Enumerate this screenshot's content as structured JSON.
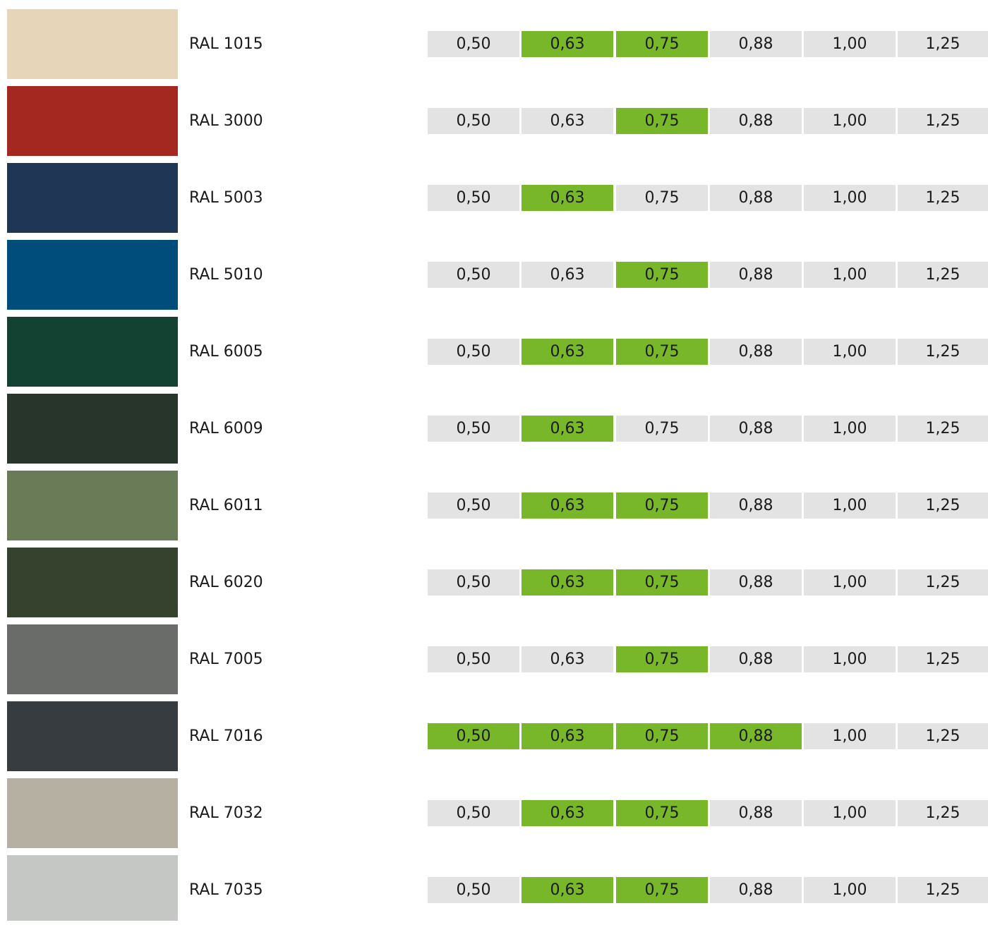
{
  "colors": {
    "available": "#78b72a",
    "unavailable": "#e3e3e3",
    "text": "#1a1a1a"
  },
  "rows": [
    {
      "label": "RAL 1015",
      "swatch": "#e6d5b8",
      "cells": [
        {
          "value": "0,50",
          "available": false
        },
        {
          "value": "0,63",
          "available": true
        },
        {
          "value": "0,75",
          "available": true
        },
        {
          "value": "0,88",
          "available": false
        },
        {
          "value": "1,00",
          "available": false
        },
        {
          "value": "1,25",
          "available": false
        }
      ]
    },
    {
      "label": "RAL 3000",
      "swatch": "#a42820",
      "cells": [
        {
          "value": "0,50",
          "available": false
        },
        {
          "value": "0,63",
          "available": false
        },
        {
          "value": "0,75",
          "available": true
        },
        {
          "value": "0,88",
          "available": false
        },
        {
          "value": "1,00",
          "available": false
        },
        {
          "value": "1,25",
          "available": false
        }
      ]
    },
    {
      "label": "RAL 5003",
      "swatch": "#1f3655",
      "cells": [
        {
          "value": "0,50",
          "available": false
        },
        {
          "value": "0,63",
          "available": true
        },
        {
          "value": "0,75",
          "available": false
        },
        {
          "value": "0,88",
          "available": false
        },
        {
          "value": "1,00",
          "available": false
        },
        {
          "value": "1,25",
          "available": false
        }
      ]
    },
    {
      "label": "RAL 5010",
      "swatch": "#004c7a",
      "cells": [
        {
          "value": "0,50",
          "available": false
        },
        {
          "value": "0,63",
          "available": false
        },
        {
          "value": "0,75",
          "available": true
        },
        {
          "value": "0,88",
          "available": false
        },
        {
          "value": "1,00",
          "available": false
        },
        {
          "value": "1,25",
          "available": false
        }
      ]
    },
    {
      "label": "RAL 6005",
      "swatch": "#144232",
      "cells": [
        {
          "value": "0,50",
          "available": false
        },
        {
          "value": "0,63",
          "available": true
        },
        {
          "value": "0,75",
          "available": true
        },
        {
          "value": "0,88",
          "available": false
        },
        {
          "value": "1,00",
          "available": false
        },
        {
          "value": "1,25",
          "available": false
        }
      ]
    },
    {
      "label": "RAL 6009",
      "swatch": "#27352b",
      "cells": [
        {
          "value": "0,50",
          "available": false
        },
        {
          "value": "0,63",
          "available": true
        },
        {
          "value": "0,75",
          "available": false
        },
        {
          "value": "0,88",
          "available": false
        },
        {
          "value": "1,00",
          "available": false
        },
        {
          "value": "1,25",
          "available": false
        }
      ]
    },
    {
      "label": "RAL 6011",
      "swatch": "#6a7c57",
      "cells": [
        {
          "value": "0,50",
          "available": false
        },
        {
          "value": "0,63",
          "available": true
        },
        {
          "value": "0,75",
          "available": true
        },
        {
          "value": "0,88",
          "available": false
        },
        {
          "value": "1,00",
          "available": false
        },
        {
          "value": "1,25",
          "available": false
        }
      ]
    },
    {
      "label": "RAL 6020",
      "swatch": "#36422e",
      "cells": [
        {
          "value": "0,50",
          "available": false
        },
        {
          "value": "0,63",
          "available": true
        },
        {
          "value": "0,75",
          "available": true
        },
        {
          "value": "0,88",
          "available": false
        },
        {
          "value": "1,00",
          "available": false
        },
        {
          "value": "1,25",
          "available": false
        }
      ]
    },
    {
      "label": "RAL 7005",
      "swatch": "#6a6c69",
      "cells": [
        {
          "value": "0,50",
          "available": false
        },
        {
          "value": "0,63",
          "available": false
        },
        {
          "value": "0,75",
          "available": true
        },
        {
          "value": "0,88",
          "available": false
        },
        {
          "value": "1,00",
          "available": false
        },
        {
          "value": "1,25",
          "available": false
        }
      ]
    },
    {
      "label": "RAL 7016",
      "swatch": "#373c41",
      "cells": [
        {
          "value": "0,50",
          "available": true
        },
        {
          "value": "0,63",
          "available": true
        },
        {
          "value": "0,75",
          "available": true
        },
        {
          "value": "0,88",
          "available": true
        },
        {
          "value": "1,00",
          "available": false
        },
        {
          "value": "1,25",
          "available": false
        }
      ]
    },
    {
      "label": "RAL 7032",
      "swatch": "#b6b0a2",
      "cells": [
        {
          "value": "0,50",
          "available": false
        },
        {
          "value": "0,63",
          "available": true
        },
        {
          "value": "0,75",
          "available": true
        },
        {
          "value": "0,88",
          "available": false
        },
        {
          "value": "1,00",
          "available": false
        },
        {
          "value": "1,25",
          "available": false
        }
      ]
    },
    {
      "label": "RAL 7035",
      "swatch": "#c5c7c4",
      "cells": [
        {
          "value": "0,50",
          "available": false
        },
        {
          "value": "0,63",
          "available": true
        },
        {
          "value": "0,75",
          "available": true
        },
        {
          "value": "0,88",
          "available": false
        },
        {
          "value": "1,00",
          "available": false
        },
        {
          "value": "1,25",
          "available": false
        }
      ]
    }
  ]
}
